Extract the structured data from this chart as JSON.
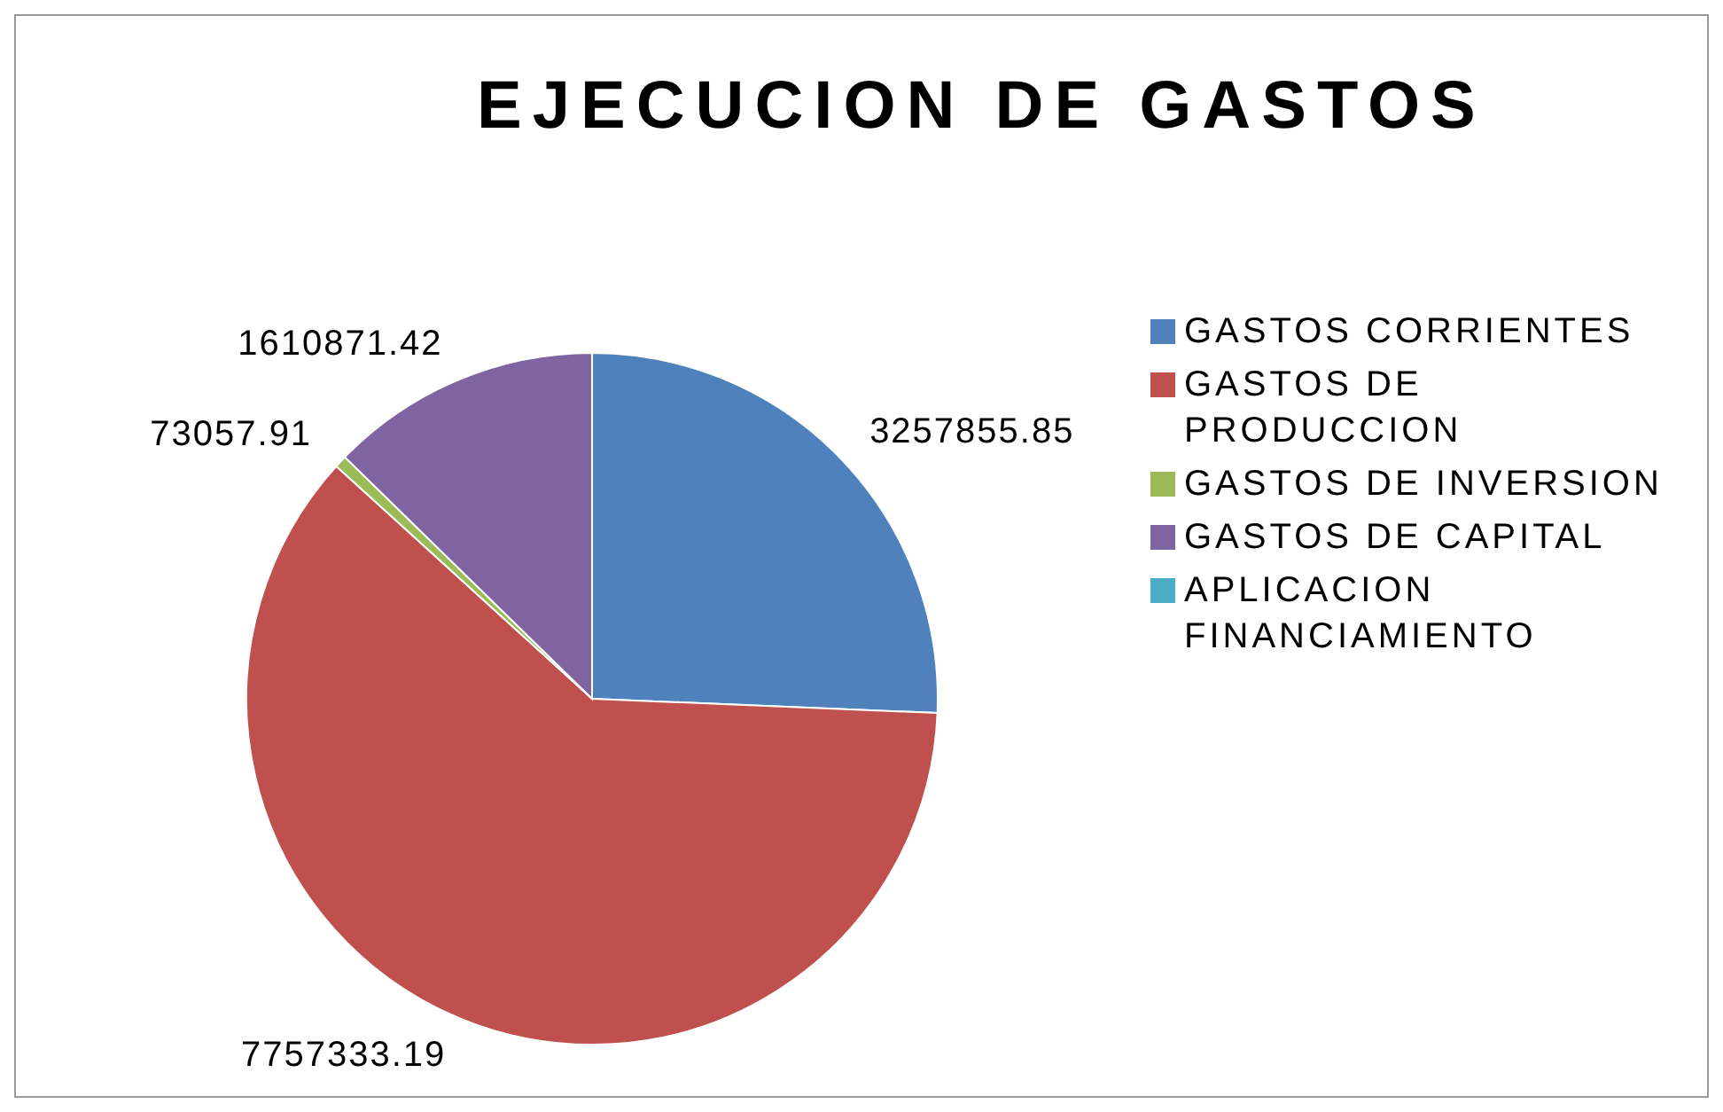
{
  "chart_data": {
    "type": "pie",
    "title": "EJECUCION DE GASTOS",
    "categories": [
      "GASTOS CORRIENTES",
      "GASTOS DE PRODUCCION",
      "GASTOS DE INVERSION",
      "GASTOS DE CAPITAL",
      "APLICACION FINANCIAMIENTO"
    ],
    "values": [
      3257855.85,
      7757333.19,
      73057.91,
      1610871.42,
      null
    ],
    "colors": [
      "#4f81bd",
      "#c0504d",
      "#9bbb59",
      "#8064a2",
      "#4bacc6"
    ],
    "data_labels": true,
    "legend": "right"
  }
}
